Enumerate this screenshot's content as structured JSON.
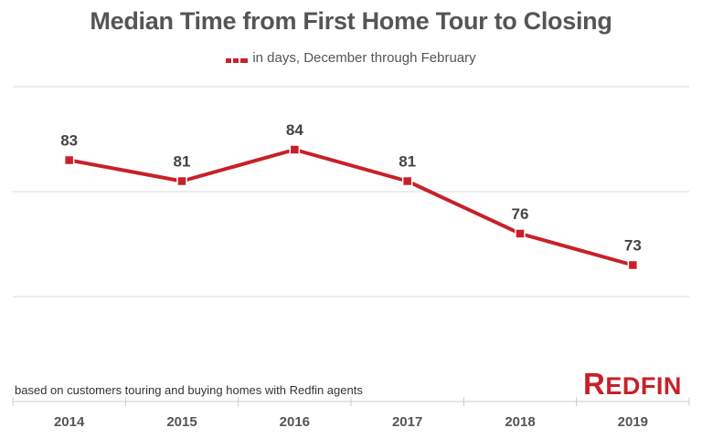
{
  "chart_data": {
    "type": "line",
    "title": "Median Time from First Home Tour to Closing",
    "categories": [
      "2014",
      "2015",
      "2016",
      "2017",
      "2018",
      "2019"
    ],
    "series": [
      {
        "name": "in days, December through February",
        "values": [
          83,
          81,
          84,
          81,
          76,
          73
        ],
        "color": "#c8202a"
      }
    ],
    "data_labels": [
      "83",
      "81",
      "84",
      "81",
      "76",
      "73"
    ],
    "ylim": [
      60,
      90
    ],
    "gridlines": [
      70,
      80,
      90
    ],
    "grid": true,
    "legend_position": "top-center",
    "xlabel": "",
    "ylabel": ""
  },
  "footnote": "based on customers touring and buying homes with Redfin agents",
  "logo": "REDFIN"
}
